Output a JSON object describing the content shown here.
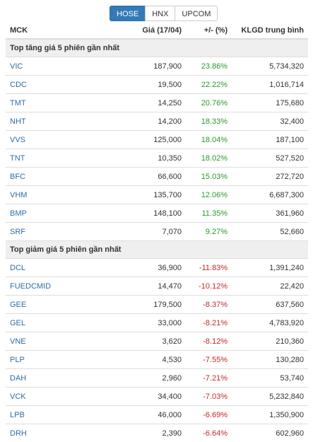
{
  "exchange_tabs": [
    {
      "label": "HOSE",
      "active": true
    },
    {
      "label": "HNX",
      "active": false
    },
    {
      "label": "UPCOM",
      "active": false
    }
  ],
  "columns": {
    "code": "MCK",
    "price": "Giá (17/04)",
    "change": "+/- (%)",
    "volume": "KLGD trung bình"
  },
  "colors": {
    "accent": "#337ab7",
    "up": "#2b9a2b",
    "down": "#c62828",
    "link": "#2e6da4"
  },
  "sections": [
    {
      "title": "Top tăng giá 5 phiên gần nhất",
      "direction": "up",
      "rows": [
        {
          "code": "VIC",
          "price": "187,900",
          "change": "23.86%",
          "volume": "5,734,320"
        },
        {
          "code": "CDC",
          "price": "19,500",
          "change": "22.22%",
          "volume": "1,016,714"
        },
        {
          "code": "TMT",
          "price": "14,250",
          "change": "20.76%",
          "volume": "175,680"
        },
        {
          "code": "NHT",
          "price": "14,200",
          "change": "18.33%",
          "volume": "32,400"
        },
        {
          "code": "VVS",
          "price": "125,000",
          "change": "18.04%",
          "volume": "187,100"
        },
        {
          "code": "TNT",
          "price": "10,350",
          "change": "18.02%",
          "volume": "527,520"
        },
        {
          "code": "BFC",
          "price": "66,600",
          "change": "15.03%",
          "volume": "272,720"
        },
        {
          "code": "VHM",
          "price": "135,700",
          "change": "12.06%",
          "volume": "6,687,300"
        },
        {
          "code": "BMP",
          "price": "148,100",
          "change": "11.35%",
          "volume": "361,960"
        },
        {
          "code": "SRF",
          "price": "7,070",
          "change": "9.27%",
          "volume": "52,660"
        }
      ]
    },
    {
      "title": "Top giảm giá 5 phiên gần nhất",
      "direction": "down",
      "rows": [
        {
          "code": "DCL",
          "price": "36,900",
          "change": "-11.83%",
          "volume": "1,391,240"
        },
        {
          "code": "FUEDCMID",
          "price": "14,470",
          "change": "-10.12%",
          "volume": "22,420"
        },
        {
          "code": "GEE",
          "price": "179,500",
          "change": "-8.37%",
          "volume": "637,560"
        },
        {
          "code": "GEL",
          "price": "33,000",
          "change": "-8.21%",
          "volume": "4,783,920"
        },
        {
          "code": "VNE",
          "price": "3,620",
          "change": "-8.12%",
          "volume": "210,360"
        },
        {
          "code": "PLP",
          "price": "4,530",
          "change": "-7.55%",
          "volume": "130,280"
        },
        {
          "code": "DAH",
          "price": "2,960",
          "change": "-7.21%",
          "volume": "53,740"
        },
        {
          "code": "VCK",
          "price": "34,400",
          "change": "-7.03%",
          "volume": "5,232,840"
        },
        {
          "code": "LPB",
          "price": "46,000",
          "change": "-6.69%",
          "volume": "1,350,900"
        },
        {
          "code": "DRH",
          "price": "2,390",
          "change": "-6.64%",
          "volume": "602,960"
        }
      ]
    }
  ]
}
